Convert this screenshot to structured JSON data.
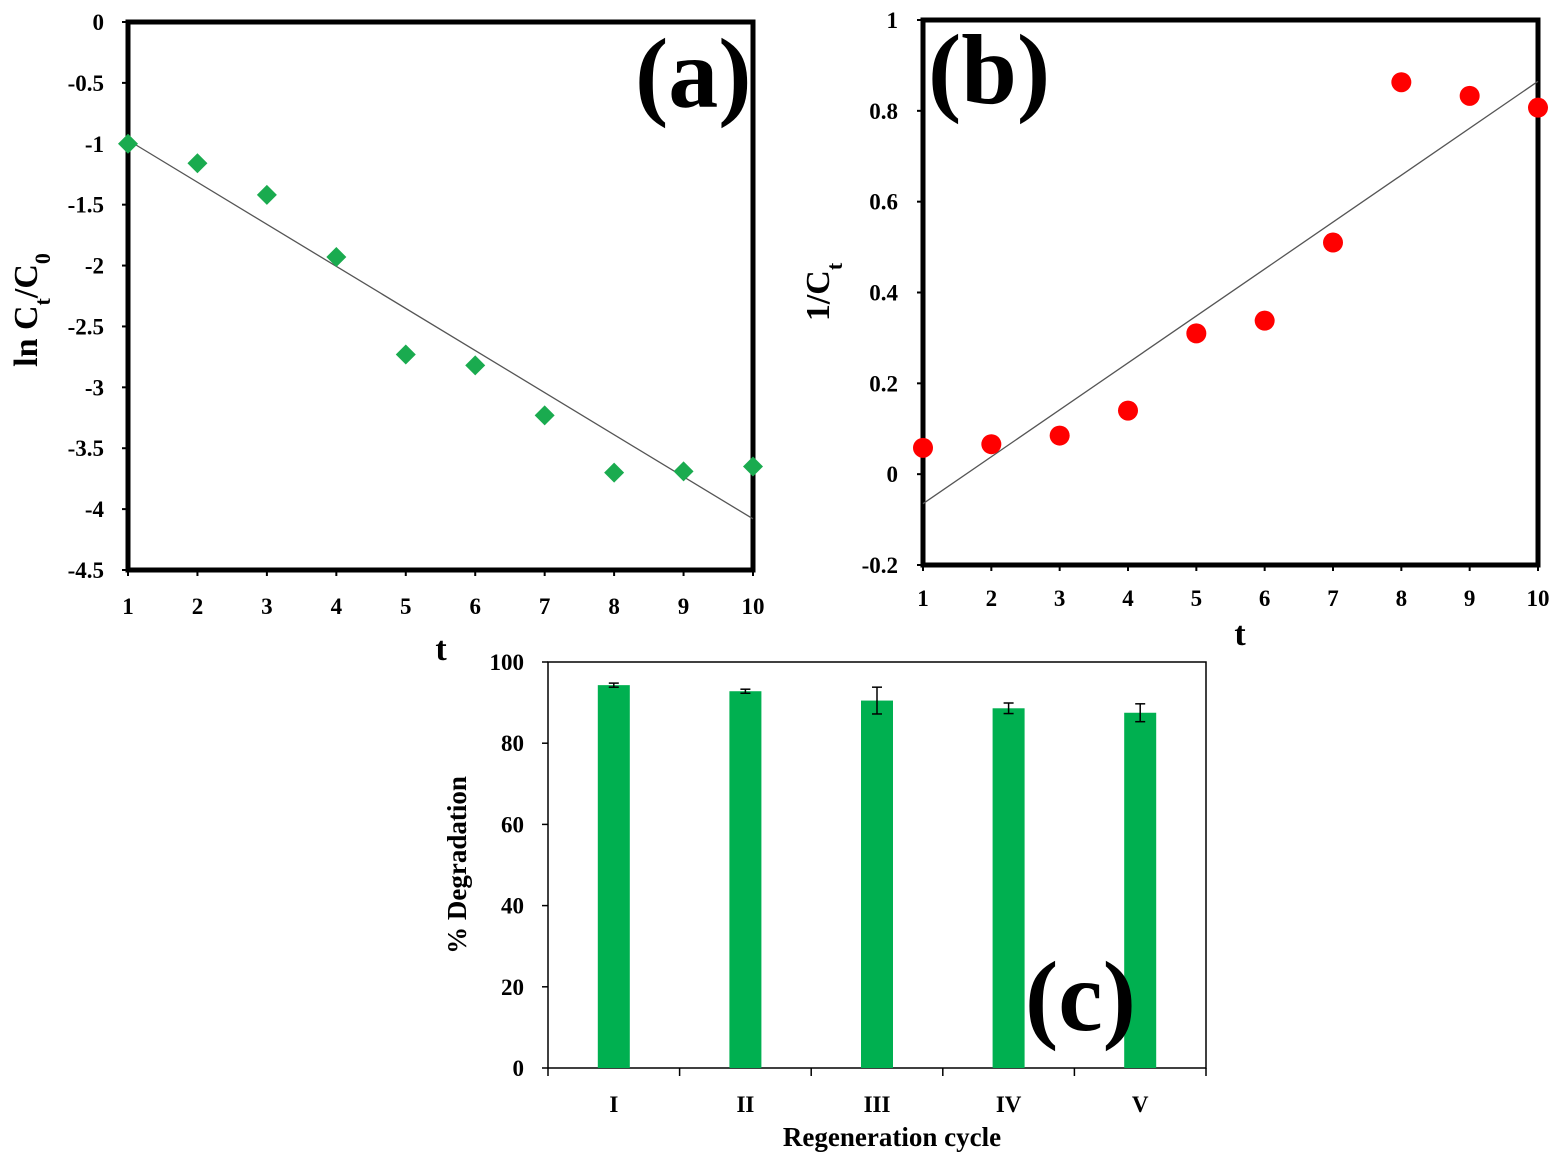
{
  "chart_data": [
    {
      "type": "scatter",
      "panel_label": "(a)",
      "title": "",
      "xlabel": "t",
      "ylabel": "ln Ct/C0",
      "ylabel_parts": {
        "pre": "ln C",
        "sub1": "t",
        "mid": "/C",
        "sub2": "0"
      },
      "xlim": [
        1,
        10
      ],
      "ylim": [
        -4.5,
        0
      ],
      "xticks": [
        "1",
        "2",
        "3",
        "4",
        "5",
        "6",
        "7",
        "8",
        "9",
        "10"
      ],
      "yticks": [
        "0",
        "-0.5",
        "-1",
        "-1.5",
        "-2",
        "-2.5",
        "-3",
        "-3.5",
        "-4",
        "-4.5"
      ],
      "grid": false,
      "marker": "diamond",
      "color": "#1aab4f",
      "series": [
        {
          "name": "ln Ct/C0",
          "x": [
            1,
            2,
            3,
            4,
            5,
            6,
            7,
            8,
            9,
            10
          ],
          "y": [
            -1.0,
            -1.16,
            -1.42,
            -1.93,
            -2.73,
            -2.82,
            -3.23,
            -3.7,
            -3.69,
            -3.65
          ]
        }
      ],
      "trendline": {
        "x": [
          1,
          10
        ],
        "y": [
          -0.97,
          -4.08
        ]
      }
    },
    {
      "type": "scatter",
      "panel_label": "(b)",
      "title": "",
      "xlabel": "t",
      "ylabel": "1/Ct",
      "ylabel_parts": {
        "pre": "1/C",
        "sub1": "t"
      },
      "xlim": [
        1,
        10
      ],
      "ylim": [
        -0.2,
        1.0
      ],
      "xticks": [
        "1",
        "2",
        "3",
        "4",
        "5",
        "6",
        "7",
        "8",
        "9",
        "10"
      ],
      "yticks": [
        "1",
        "0.8",
        "0.6",
        "0.4",
        "0.2",
        "0",
        "-0.2"
      ],
      "grid": false,
      "marker": "circle",
      "color": "#ff0000",
      "series": [
        {
          "name": "1/Ct",
          "x": [
            1,
            2,
            3,
            4,
            5,
            6,
            7,
            8,
            9,
            10
          ],
          "y": [
            0.058,
            0.066,
            0.085,
            0.14,
            0.31,
            0.338,
            0.51,
            0.863,
            0.833,
            0.807
          ]
        }
      ],
      "trendline": {
        "x": [
          1,
          10
        ],
        "y": [
          -0.065,
          0.865
        ]
      }
    },
    {
      "type": "bar",
      "panel_label": "(c)",
      "title": "",
      "xlabel": "Regeneration cycle",
      "ylabel": "% Degradation",
      "categories": [
        "I",
        "II",
        "III",
        "IV",
        "V"
      ],
      "values": [
        94.3,
        92.8,
        90.5,
        88.6,
        87.5
      ],
      "errors": [
        0.5,
        0.5,
        3.3,
        1.3,
        2.2
      ],
      "ylim": [
        0,
        100
      ],
      "yticks": [
        "100",
        "80",
        "60",
        "40",
        "20",
        "0"
      ],
      "grid": false,
      "color": "#00b050"
    }
  ]
}
